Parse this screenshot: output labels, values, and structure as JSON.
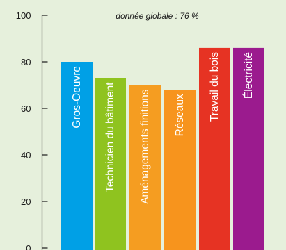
{
  "chart_data": {
    "type": "bar",
    "annotation": "donnée globale : 76 %",
    "categories": [
      "Gros-Oeuvre",
      "Technicien du bâtiment",
      "Aménagements finitions",
      "Réseaux",
      "Travail du bois",
      "Électricité"
    ],
    "values": [
      80,
      73,
      70,
      68,
      86,
      86
    ],
    "colors": [
      "#00a0e6",
      "#8fc31f",
      "#f59d21",
      "#f7941d",
      "#e63323",
      "#9b1b8e"
    ],
    "yticks": [
      0,
      20,
      40,
      60,
      80,
      100
    ],
    "ylim": [
      0,
      100
    ],
    "labels_inside_bars": true,
    "grid": false
  },
  "background_color": "#e6f0dc"
}
